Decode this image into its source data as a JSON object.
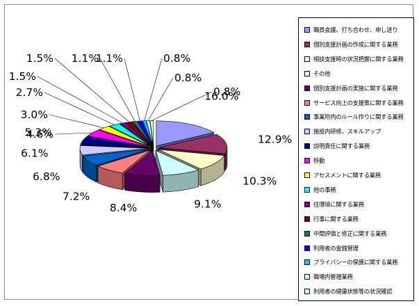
{
  "chart_data": {
    "type": "pie",
    "style": "3d-exploded",
    "legend_position": "right",
    "slices": [
      {
        "label": "職員会議、打ち合わせ、申し送り",
        "value": 16.0,
        "value_label": "16.0%",
        "color": "#9999ff"
      },
      {
        "label": "個別支援計画の作成に関する業務",
        "value": 12.9,
        "value_label": "12.9%",
        "color": "#993366"
      },
      {
        "label": "相談支援時の状況把握に関する業務",
        "value": 10.3,
        "value_label": "10.3%",
        "color": "#ffffcc"
      },
      {
        "label": "その他",
        "value": 9.1,
        "value_label": "9.1%",
        "color": "#ccffff"
      },
      {
        "label": "個別支援計画の実施に関する業務",
        "value": 8.4,
        "value_label": "8.4%",
        "color": "#660066"
      },
      {
        "label": "サービス向上の支援策に関する業務",
        "value": 7.2,
        "value_label": "7.2%",
        "color": "#ff8080"
      },
      {
        "label": "事業所内のルール作りに関する業務",
        "value": 6.8,
        "value_label": "6.8%",
        "color": "#0066cc"
      },
      {
        "label": "施設内研修、スキルアップ",
        "value": 6.1,
        "value_label": "6.1%",
        "color": "#ccccff"
      },
      {
        "label": "説明責任に関する業務",
        "value": 5.3,
        "value_label": "5.3%",
        "color": "#000080"
      },
      {
        "label": "移動",
        "value": 4.6,
        "value_label": "4.6%",
        "color": "#ff00ff"
      },
      {
        "label": "アセスメントに関する業務",
        "value": 3.0,
        "value_label": "3.0%",
        "color": "#ffff00"
      },
      {
        "label": "他の事務",
        "value": 2.7,
        "value_label": "2.7%",
        "color": "#00ffff"
      },
      {
        "label": "住環境に関する業務",
        "value": 1.5,
        "value_label": "1.5%",
        "color": "#800080"
      },
      {
        "label": "行事に関する業務",
        "value": 1.5,
        "value_label": "1.5%",
        "color": "#800000"
      },
      {
        "label": "中間評価と修正に関する業務",
        "value": 1.1,
        "value_label": "1.1%",
        "color": "#008080"
      },
      {
        "label": "利用者の金銭管理",
        "value": 1.1,
        "value_label": "1.1%",
        "color": "#0000ff"
      },
      {
        "label": "プライバシーの保護に関する業務",
        "value": 0.8,
        "value_label": "0.8%",
        "color": "#00ccff"
      },
      {
        "label": "職場内管理業務",
        "value": 0.8,
        "value_label": "0.8%",
        "color": "#ccffff"
      },
      {
        "label": "利用者の健康状態等の状況確認",
        "value": 0.8,
        "value_label": "0.8%",
        "color": "#ccffcc"
      }
    ]
  }
}
